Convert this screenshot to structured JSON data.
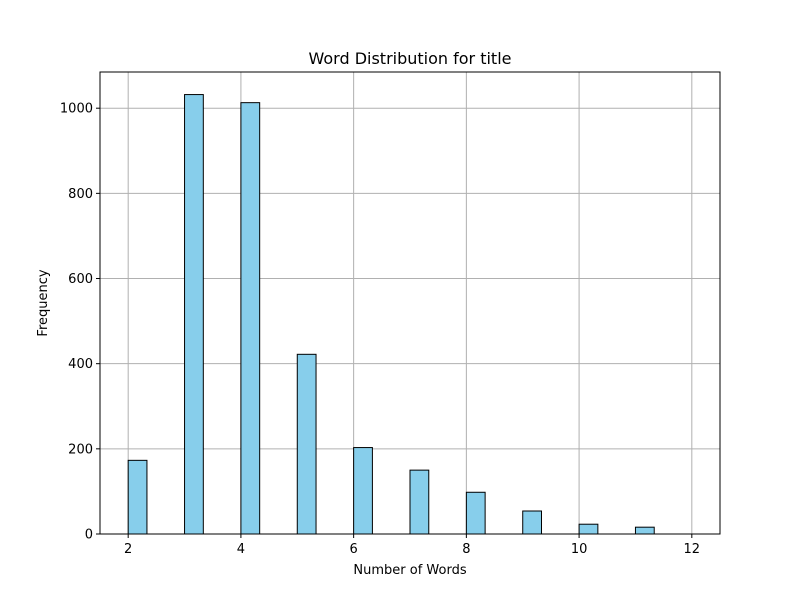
{
  "chart_data": {
    "type": "bar",
    "title": "Word Distribution for title",
    "xlabel": "Number of Words",
    "ylabel": "Frequency",
    "xlim": [
      1.5,
      12.5
    ],
    "ylim": [
      0,
      1085
    ],
    "x_ticks": [
      2,
      4,
      6,
      8,
      10,
      12
    ],
    "y_ticks": [
      0,
      200,
      400,
      600,
      800,
      1000
    ],
    "grid": true,
    "bar_color": "#87ceeb",
    "edge_color": "#000000",
    "bins": [
      {
        "start": 2.0,
        "end": 2.333,
        "value": 173
      },
      {
        "start": 2.333,
        "end": 2.667,
        "value": 0
      },
      {
        "start": 2.667,
        "end": 3.0,
        "value": 0
      },
      {
        "start": 3.0,
        "end": 3.333,
        "value": 1032
      },
      {
        "start": 3.333,
        "end": 3.667,
        "value": 0
      },
      {
        "start": 3.667,
        "end": 4.0,
        "value": 0
      },
      {
        "start": 4.0,
        "end": 4.333,
        "value": 1013
      },
      {
        "start": 4.333,
        "end": 4.667,
        "value": 0
      },
      {
        "start": 4.667,
        "end": 5.0,
        "value": 0
      },
      {
        "start": 5.0,
        "end": 5.333,
        "value": 422
      },
      {
        "start": 5.333,
        "end": 5.667,
        "value": 0
      },
      {
        "start": 5.667,
        "end": 6.0,
        "value": 0
      },
      {
        "start": 6.0,
        "end": 6.333,
        "value": 203
      },
      {
        "start": 6.333,
        "end": 6.667,
        "value": 0
      },
      {
        "start": 6.667,
        "end": 7.0,
        "value": 0
      },
      {
        "start": 7.0,
        "end": 7.333,
        "value": 150
      },
      {
        "start": 7.333,
        "end": 7.667,
        "value": 0
      },
      {
        "start": 7.667,
        "end": 8.0,
        "value": 0
      },
      {
        "start": 8.0,
        "end": 8.333,
        "value": 98
      },
      {
        "start": 8.333,
        "end": 8.667,
        "value": 0
      },
      {
        "start": 8.667,
        "end": 9.0,
        "value": 0
      },
      {
        "start": 9.0,
        "end": 9.333,
        "value": 54
      },
      {
        "start": 9.333,
        "end": 9.667,
        "value": 0
      },
      {
        "start": 9.667,
        "end": 10.0,
        "value": 0
      },
      {
        "start": 10.0,
        "end": 10.333,
        "value": 23
      },
      {
        "start": 10.333,
        "end": 10.667,
        "value": 0
      },
      {
        "start": 10.667,
        "end": 11.0,
        "value": 0
      },
      {
        "start": 11.0,
        "end": 11.333,
        "value": 16
      },
      {
        "start": 11.333,
        "end": 11.667,
        "value": 0
      },
      {
        "start": 11.667,
        "end": 12.0,
        "value": 0
      }
    ]
  }
}
